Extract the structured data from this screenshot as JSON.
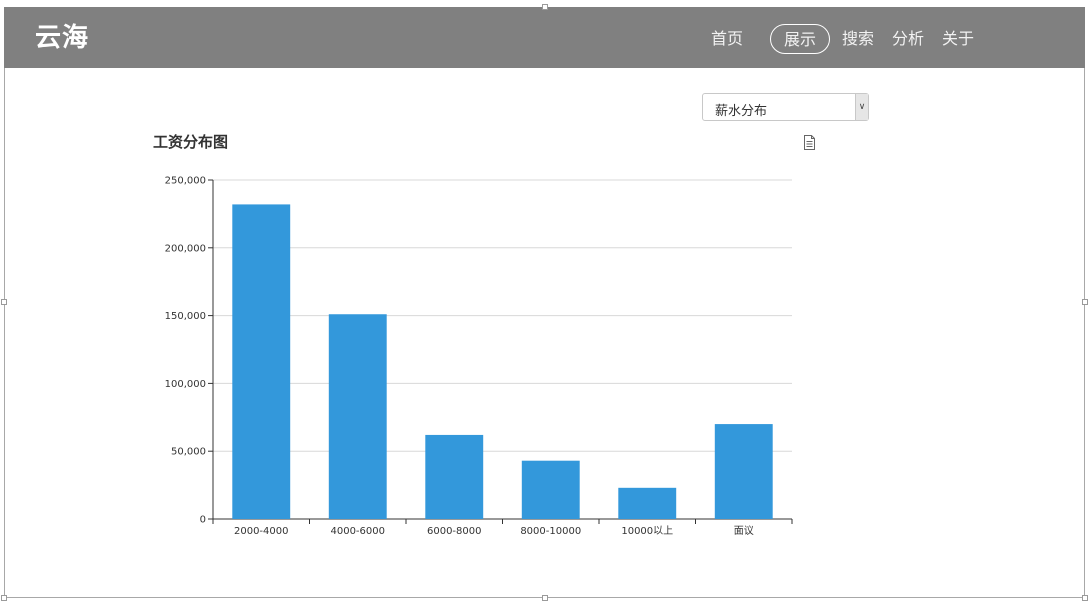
{
  "app": {
    "brand": "云海"
  },
  "nav": {
    "items": [
      {
        "label": "首页",
        "active": false
      },
      {
        "label": "展示",
        "active": true
      },
      {
        "label": "搜索",
        "active": false
      },
      {
        "label": "分析",
        "active": false
      },
      {
        "label": "关于",
        "active": false
      }
    ]
  },
  "selector": {
    "selected": "薪水分布"
  },
  "icons": {
    "export": "document-icon",
    "dropdown": "chevron-down-icon"
  },
  "colors": {
    "navbar": "#808080",
    "bar": "#3398db",
    "grid": "#d8d8d8"
  },
  "chart_data": {
    "type": "bar",
    "title": "工资分布图",
    "xlabel": "",
    "ylabel": "",
    "categories": [
      "2000-4000",
      "4000-6000",
      "6000-8000",
      "8000-10000",
      "10000以上",
      "面议"
    ],
    "values": [
      232000,
      151000,
      62000,
      43000,
      23000,
      70000
    ],
    "ylim": [
      0,
      250000
    ],
    "yticks": [
      0,
      50000,
      100000,
      150000,
      200000,
      250000
    ],
    "ytick_labels": [
      "0",
      "50,000",
      "100,000",
      "150,000",
      "200,000",
      "250,000"
    ],
    "grid": true,
    "legend": "none"
  }
}
